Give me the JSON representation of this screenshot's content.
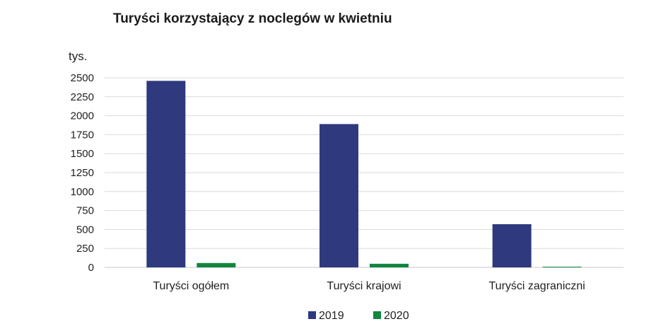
{
  "chart_data": {
    "type": "bar",
    "title": "Turyści korzystający z noclegów w kwietniu",
    "ylabel": "tys.",
    "xlabel": "",
    "ylim": [
      0,
      2500
    ],
    "yticks": [
      0,
      250,
      500,
      750,
      1000,
      1250,
      1500,
      1750,
      2000,
      2250,
      2500
    ],
    "grid": true,
    "legend": "bottom",
    "categories": [
      "Turyści ogółem",
      "Turyści krajowi",
      "Turyści zagraniczni"
    ],
    "series": [
      {
        "name": "2019",
        "color": "#2e3a7d",
        "values": [
          2460,
          1890,
          570
        ]
      },
      {
        "name": "2020",
        "color": "#12853f",
        "values": [
          58,
          48,
          8
        ]
      }
    ]
  }
}
